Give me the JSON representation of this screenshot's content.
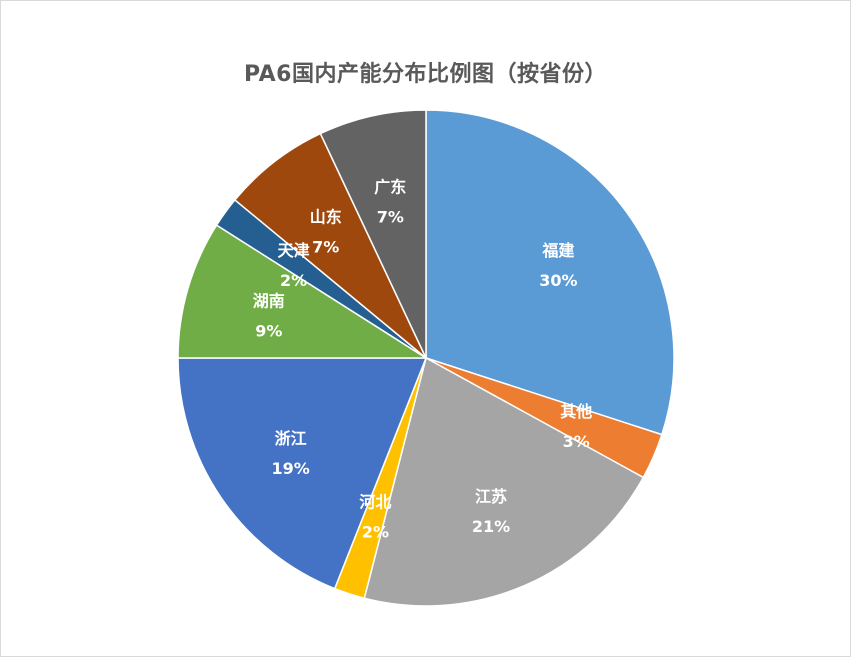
{
  "chart_data": {
    "type": "pie",
    "title": "PA6国内产能分布比例图（按省份）",
    "start_angle_deg": 0,
    "direction": "clockwise",
    "slices": [
      {
        "label": "福建",
        "value": 30,
        "value_label": "30%",
        "color": "#5B9BD5"
      },
      {
        "label": "其他",
        "value": 3,
        "value_label": "3%",
        "color": "#ED7D31"
      },
      {
        "label": "江苏",
        "value": 21,
        "value_label": "21%",
        "color": "#A5A5A5"
      },
      {
        "label": "河北",
        "value": 2,
        "value_label": "2%",
        "color": "#FFC000"
      },
      {
        "label": "浙江",
        "value": 19,
        "value_label": "19%",
        "color": "#4472C4"
      },
      {
        "label": "湖南",
        "value": 9,
        "value_label": "9%",
        "color": "#70AD47"
      },
      {
        "label": "天津",
        "value": 2,
        "value_label": "2%",
        "color": "#255E91"
      },
      {
        "label": "山东",
        "value": 7,
        "value_label": "7%",
        "color": "#9E480E"
      },
      {
        "label": "广东",
        "value": 7,
        "value_label": "7%",
        "color": "#636363"
      }
    ]
  }
}
